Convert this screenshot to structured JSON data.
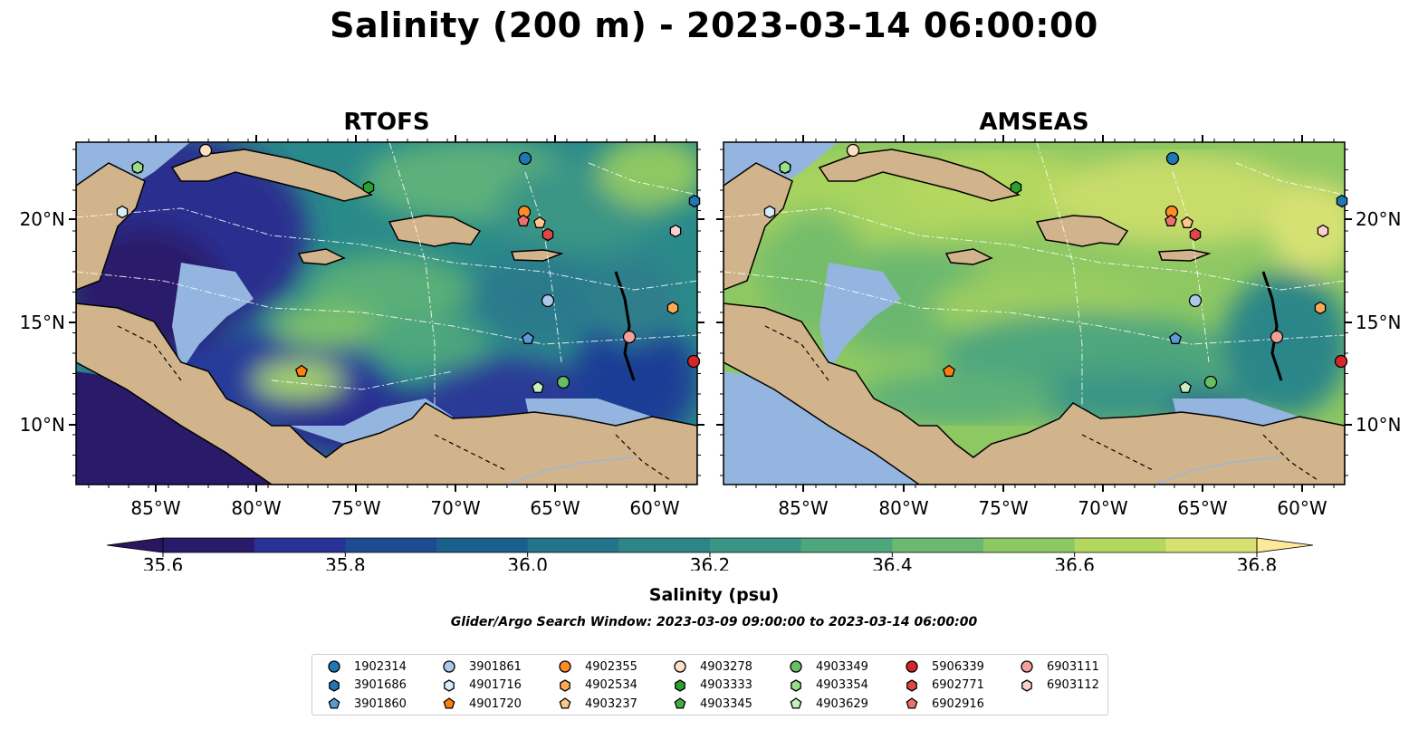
{
  "title": "Salinity (200 m) - 2023-03-14 06:00:00",
  "panels": [
    {
      "name": "RTOFS",
      "lon_ticks": [
        "85°W",
        "80°W",
        "75°W",
        "70°W",
        "65°W",
        "60°W"
      ],
      "lat_ticks": [
        "20°N",
        "15°N",
        "10°N"
      ]
    },
    {
      "name": "AMSEAS",
      "lon_ticks": [
        "85°W",
        "80°W",
        "75°W",
        "70°W",
        "65°W",
        "60°W"
      ],
      "lat_ticks": [
        "20°N",
        "15°N",
        "10°N"
      ]
    }
  ],
  "colorbar": {
    "label": "Salinity (psu)",
    "ticks": [
      "35.6",
      "35.8",
      "36.0",
      "36.2",
      "36.4",
      "36.6",
      "36.8"
    ],
    "colors": [
      "#2a1a6a",
      "#273196",
      "#1e4c92",
      "#1b5f8c",
      "#237489",
      "#2c8688",
      "#3b9585",
      "#4ea67d",
      "#6bb870",
      "#8ec863",
      "#b3d75f",
      "#d7e173"
    ],
    "extend_low_color": "#2c1660",
    "extend_high_color": "#fde998"
  },
  "search_window": "Glider/Argo Search Window: 2023-03-09 09:00:00 to 2023-03-14 06:00:00",
  "legend": [
    {
      "id": "1902314",
      "shape": "circle",
      "color": "#1f77b4"
    },
    {
      "id": "3901686",
      "shape": "hexagon",
      "color": "#1f77b4"
    },
    {
      "id": "3901860",
      "shape": "pentagon",
      "color": "#5b9bd5"
    },
    {
      "id": "3901861",
      "shape": "circle",
      "color": "#aec7e8"
    },
    {
      "id": "4901716",
      "shape": "hexagon",
      "color": "#d6ecfb"
    },
    {
      "id": "4901720",
      "shape": "pentagon",
      "color": "#ff7f0e"
    },
    {
      "id": "4902355",
      "shape": "circle",
      "color": "#ff8c28"
    },
    {
      "id": "4902534",
      "shape": "hexagon",
      "color": "#ffaa55"
    },
    {
      "id": "4903237",
      "shape": "pentagon",
      "color": "#ffc68a"
    },
    {
      "id": "4903278",
      "shape": "circle",
      "color": "#fde0c4"
    },
    {
      "id": "4903333",
      "shape": "hexagon",
      "color": "#2ca02c"
    },
    {
      "id": "4903345",
      "shape": "pentagon",
      "color": "#3fae3f"
    },
    {
      "id": "4903349",
      "shape": "circle",
      "color": "#67c064"
    },
    {
      "id": "4903354",
      "shape": "hexagon",
      "color": "#98df8a"
    },
    {
      "id": "4903629",
      "shape": "pentagon",
      "color": "#c7f0bf"
    },
    {
      "id": "5906339",
      "shape": "circle",
      "color": "#d62728"
    },
    {
      "id": "6902771",
      "shape": "hexagon",
      "color": "#e04646"
    },
    {
      "id": "6902916",
      "shape": "pentagon",
      "color": "#ec7070"
    },
    {
      "id": "6903111",
      "shape": "circle",
      "color": "#f4a09a"
    },
    {
      "id": "6903112",
      "shape": "hexagon",
      "color": "#fcd0cc"
    }
  ]
}
